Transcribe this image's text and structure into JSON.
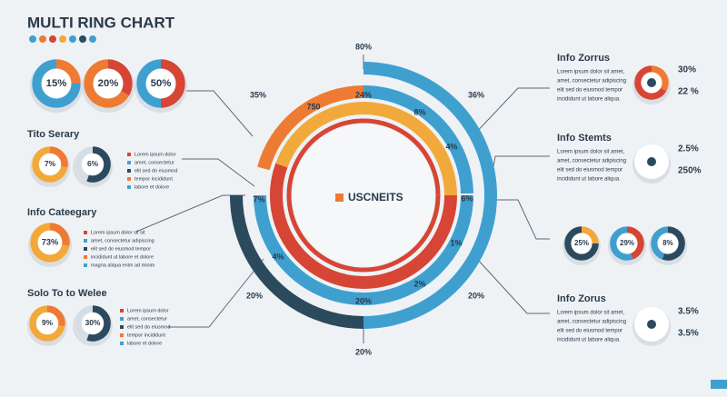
{
  "header": {
    "title": "MULTI RING CHART"
  },
  "top_donuts": [
    "15%",
    "20%",
    "50%"
  ],
  "center": {
    "title": "USCNEITS",
    "labels": [
      "80%",
      "24%",
      "750",
      "8%",
      "36%",
      "4%",
      "35%",
      "7%",
      "6%",
      "1%",
      "4%",
      "2%",
      "20%",
      "20%",
      "20%",
      "20%"
    ]
  },
  "left_sections": [
    {
      "title": "Tito Serary",
      "donuts": [
        "7%",
        "6%"
      ],
      "lines": [
        "Lorem ipsum dolor",
        "amet, consectetur",
        "elit sed do eiusmod",
        "tempor incididunt",
        "labore et dolore"
      ]
    },
    {
      "title": "Info Cateegary",
      "donuts": [
        "73%"
      ],
      "lines": [
        "Lorem ipsum dolor sit sit",
        "amet, consectetur adipiscing",
        "elit sed do eiusmod tempor",
        "incididunt ut labore et dolore",
        "magna aliqua enim ad minim"
      ]
    },
    {
      "title": "Solo To to Welee",
      "donuts": [
        "9%",
        "30%"
      ],
      "lines": [
        "Lorem ipsum dolor",
        "amet, consectetur",
        "elit sed do eiusmod",
        "tempor incididunt",
        "labore et dolore"
      ]
    }
  ],
  "right_sections": [
    {
      "title": "Info Zorrus",
      "lines": [
        "Lorem ipsum dolor sit amet,",
        "amet, consectetur adipiscing",
        "elit sed do eiusmod tempor",
        "incididunt ut labore aliqua."
      ],
      "values": [
        "30%",
        "22 %"
      ]
    },
    {
      "title": "Info Stemts",
      "lines": [
        "Lorem ipsum dolor sit amet,",
        "amet, consectetur adipiscing",
        "elit sed do eiusmod tempor",
        "incididunt ut labore aliqua."
      ],
      "values": [
        "2.5%",
        "250%"
      ]
    },
    {
      "title": "Info Zorus",
      "lines": [
        "Lorem ipsum dolor sit amet,",
        "amet, consectetur adipiscing",
        "elit sed do eiusmod tempor",
        "incididunt ut labore aliqua."
      ],
      "values": [
        "3.5%",
        "3.5%"
      ]
    }
  ],
  "small_donuts": [
    "25%",
    "29%",
    "8%"
  ]
}
